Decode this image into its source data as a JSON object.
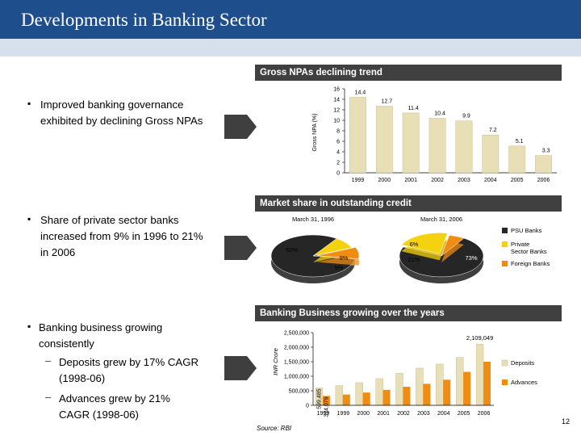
{
  "page": {
    "title": "Developments in Banking Sector",
    "page_number": "12",
    "source": "Source: RBI"
  },
  "bullets": [
    {
      "lines": [
        "Improved banking governance",
        "exhibited by declining Gross NPAs"
      ]
    },
    {
      "lines": [
        "Share of private sector banks",
        "increased from 9% in 1996 to 21%",
        "in 2006"
      ]
    },
    {
      "lines": [
        "Banking business growing",
        "consistently"
      ]
    }
  ],
  "sub_bullets": [
    {
      "lines": [
        "Deposits grew by 17% CAGR",
        "(1998-06)"
      ]
    },
    {
      "lines": [
        "Advances grew by 21%",
        "CAGR (1998-06)"
      ]
    }
  ],
  "colors": {
    "header": "#404040",
    "bar_tan": "#e9dfb6",
    "psu": "#262626",
    "private": "#f5d20f",
    "foreign": "#f18c12",
    "deposits": "#e9dfb6",
    "advances": "#f18c12"
  },
  "chart_data": [
    {
      "type": "bar",
      "title": "Gross NPAs declining trend",
      "ylabel": "Gross NPA (%)",
      "categories": [
        "1999",
        "2000",
        "2001",
        "2002",
        "2003",
        "2004",
        "2005",
        "2006"
      ],
      "values": [
        14.4,
        12.7,
        11.4,
        10.4,
        9.9,
        7.2,
        5.1,
        3.3
      ],
      "value_labels": [
        "14.4",
        "12.7",
        "11.4",
        "10.4",
        "9.9",
        "7.2",
        "5.1",
        "3.3"
      ],
      "yticks": [
        "0",
        "2",
        "4",
        "6",
        "8",
        "10",
        "12",
        "14",
        "16"
      ],
      "ylim": [
        0,
        16
      ]
    },
    {
      "type": "pie",
      "title": "Market share in outstanding credit",
      "pies": [
        {
          "label": "March 31, 1996",
          "values": [
            82,
            9,
            9
          ],
          "value_labels": [
            "82%",
            "9%",
            "9%"
          ]
        },
        {
          "label": "March 31, 2006",
          "values": [
            73,
            21,
            6
          ],
          "value_labels": [
            "73%",
            "21%",
            "6%"
          ]
        }
      ],
      "legend": [
        "PSU Banks",
        "Private Sector Banks",
        "Foreign Banks"
      ],
      "legend_position": "right"
    },
    {
      "type": "bar",
      "title": "Banking Business growing over the years",
      "ylabel": "INR Crore",
      "categories": [
        "1999",
        "1999",
        "2000",
        "2001",
        "2002",
        "2003",
        "2004",
        "2005",
        "2006"
      ],
      "series": [
        {
          "name": "Deposits",
          "values": [
            599485,
            680000,
            780000,
            920000,
            1100000,
            1280000,
            1420000,
            1650000,
            2109049
          ]
        },
        {
          "name": "Advances",
          "values": [
            324079,
            370000,
            440000,
            530000,
            640000,
            740000,
            880000,
            1150000,
            1500000
          ]
        }
      ],
      "labelled_values": [
        "599,485",
        "324,079",
        "2,109,049"
      ],
      "yticks": [
        "0",
        "500,000",
        "1,000,000",
        "1,500,000",
        "2,000,000",
        "2,500,000"
      ],
      "ylim": [
        0,
        2500000
      ],
      "legend_position": "right"
    }
  ]
}
